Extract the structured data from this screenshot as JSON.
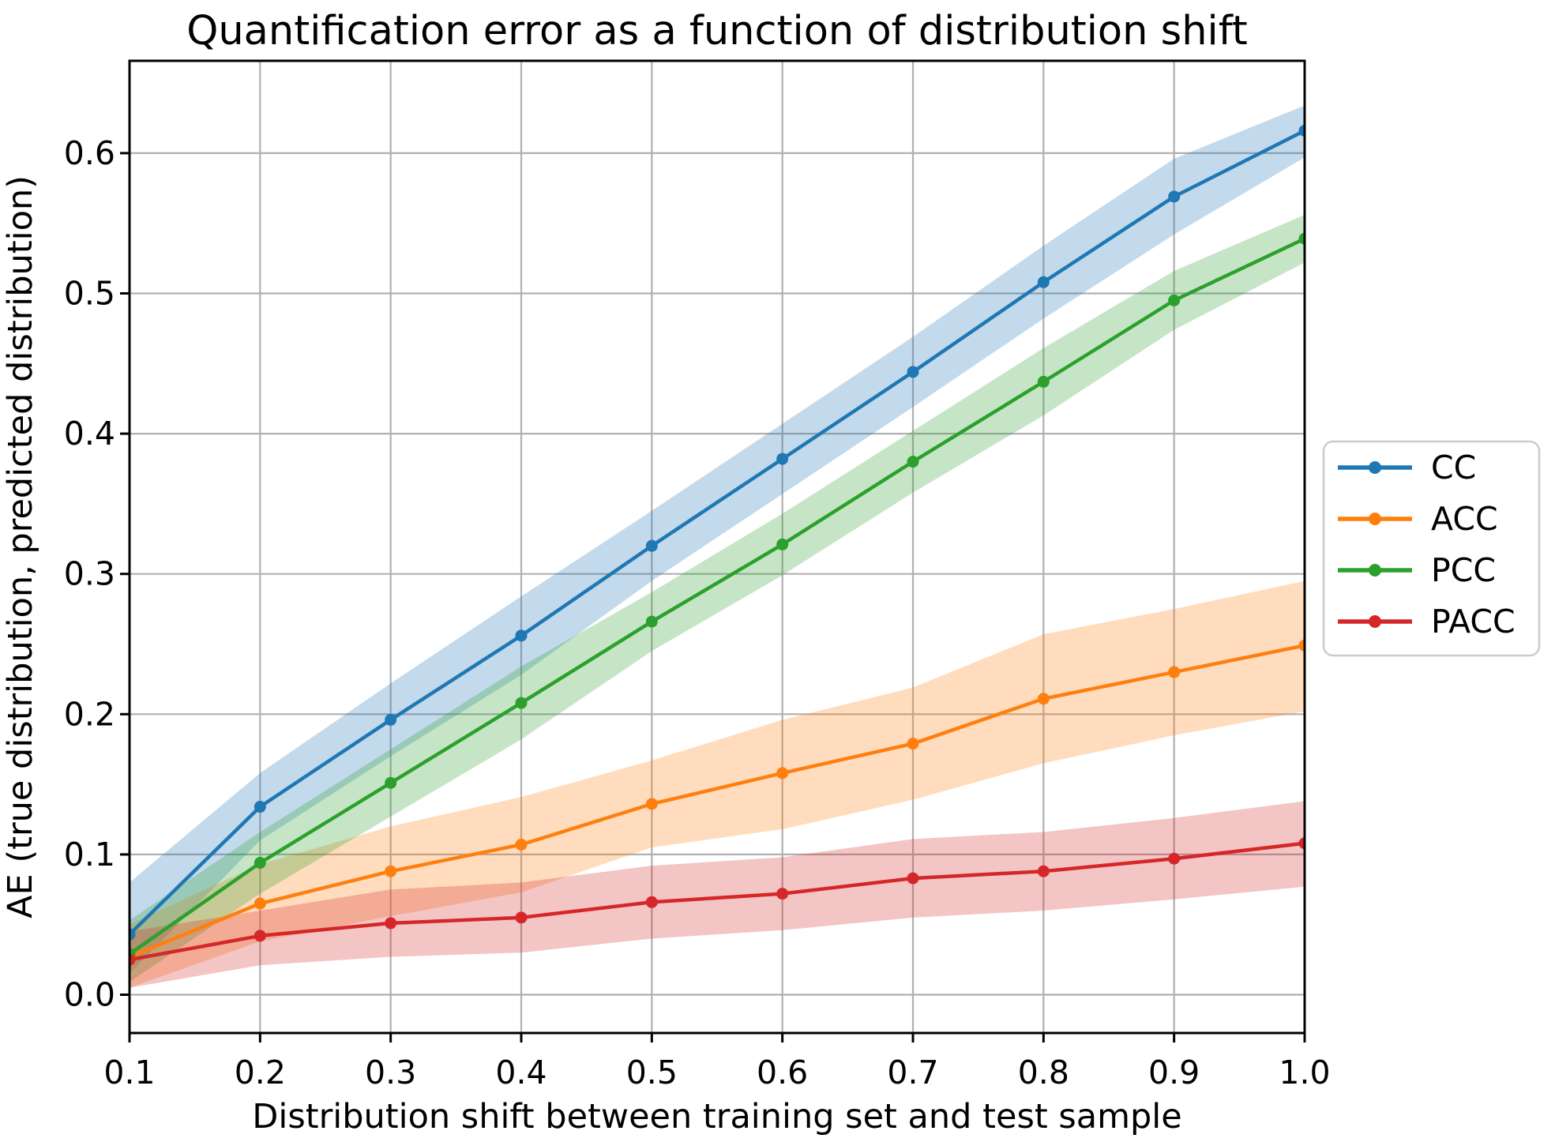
{
  "chart_data": {
    "type": "line",
    "title": "Quantification error as a function of distribution shift",
    "xlabel": "Distribution shift between training set and test sample",
    "ylabel": "AE (true distribution, predicted distribution)",
    "x": [
      0.1,
      0.2,
      0.3,
      0.4,
      0.5,
      0.6,
      0.7,
      0.8,
      0.9,
      1.0
    ],
    "xlim": [
      0.1,
      1.0
    ],
    "ylim": [
      -0.0273,
      0.6658
    ],
    "xtick_labels": [
      "0.1",
      "0.2",
      "0.3",
      "0.4",
      "0.5",
      "0.6",
      "0.7",
      "0.8",
      "0.9",
      "1.0"
    ],
    "ytick_values": [
      0.0,
      0.1,
      0.2,
      0.3,
      0.4,
      0.5,
      0.6
    ],
    "ytick_labels": [
      "0.0",
      "0.1",
      "0.2",
      "0.3",
      "0.4",
      "0.5",
      "0.6"
    ],
    "grid": true,
    "grid_color": "#b0b0b0",
    "spine_color": "#000000",
    "background_color": "#ffffff",
    "band_opacity": 0.27,
    "legend_position": "outside-center-right",
    "legend_border_color": "#cccccc",
    "series": [
      {
        "name": "CC",
        "color": "#1f77b4",
        "values": [
          0.043,
          0.134,
          0.196,
          0.256,
          0.32,
          0.382,
          0.444,
          0.508,
          0.569,
          0.616
        ],
        "band_lo": [
          0.015,
          0.11,
          0.17,
          0.228,
          0.295,
          0.357,
          0.419,
          0.482,
          0.542,
          0.597
        ],
        "band_hi": [
          0.08,
          0.158,
          0.222,
          0.284,
          0.345,
          0.407,
          0.469,
          0.534,
          0.596,
          0.634
        ]
      },
      {
        "name": "ACC",
        "color": "#ff7f0e",
        "values": [
          0.027,
          0.065,
          0.088,
          0.107,
          0.136,
          0.158,
          0.179,
          0.211,
          0.23,
          0.249
        ],
        "band_lo": [
          0.005,
          0.038,
          0.056,
          0.073,
          0.105,
          0.118,
          0.139,
          0.165,
          0.185,
          0.202
        ],
        "band_hi": [
          0.05,
          0.093,
          0.12,
          0.141,
          0.167,
          0.196,
          0.219,
          0.257,
          0.275,
          0.295
        ]
      },
      {
        "name": "PCC",
        "color": "#2ca02c",
        "values": [
          0.029,
          0.094,
          0.151,
          0.208,
          0.266,
          0.321,
          0.38,
          0.437,
          0.495,
          0.539
        ],
        "band_lo": [
          0.009,
          0.072,
          0.127,
          0.182,
          0.245,
          0.299,
          0.358,
          0.413,
          0.474,
          0.522
        ],
        "band_hi": [
          0.053,
          0.116,
          0.175,
          0.234,
          0.287,
          0.343,
          0.402,
          0.461,
          0.516,
          0.556
        ]
      },
      {
        "name": "PACC",
        "color": "#d62728",
        "values": [
          0.025,
          0.042,
          0.051,
          0.055,
          0.066,
          0.072,
          0.083,
          0.088,
          0.097,
          0.108
        ],
        "band_lo": [
          0.005,
          0.021,
          0.027,
          0.03,
          0.04,
          0.046,
          0.055,
          0.06,
          0.068,
          0.077
        ],
        "band_hi": [
          0.045,
          0.06,
          0.075,
          0.08,
          0.092,
          0.098,
          0.111,
          0.116,
          0.126,
          0.138
        ]
      }
    ]
  }
}
